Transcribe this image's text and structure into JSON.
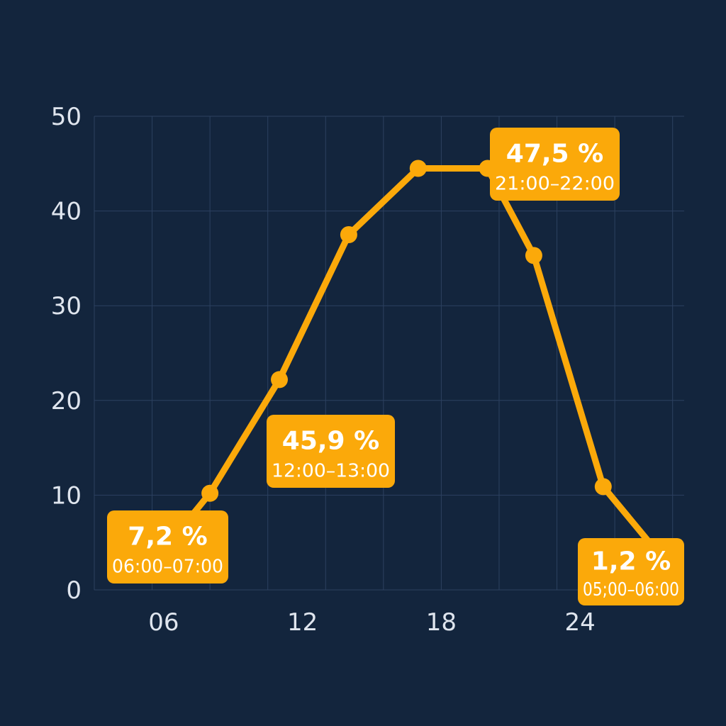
{
  "chart_data": {
    "type": "line",
    "x": [
      7,
      8,
      11,
      14,
      17,
      20,
      22,
      25,
      27
    ],
    "values": [
      7.2,
      10.2,
      22.2,
      37.5,
      44.5,
      44.5,
      35.3,
      10.9,
      5
    ],
    "xlim": [
      3,
      28.5
    ],
    "ylim": [
      0,
      50
    ],
    "xticks": [
      6,
      12,
      18,
      24
    ],
    "xtick_labels": [
      "06",
      "12",
      "18",
      "24"
    ],
    "yticks": [
      0,
      10,
      20,
      30,
      40,
      50
    ],
    "ytick_labels": [
      "0",
      "10",
      "20",
      "30",
      "40",
      "50"
    ],
    "grid": true,
    "callouts": [
      {
        "value": "7,2 %",
        "label": "06:00–07:00"
      },
      {
        "value": "45,9 %",
        "label": "12:00–13:00"
      },
      {
        "value": "47,5 %",
        "label": "21:00–22:00"
      },
      {
        "value": "1,2 %",
        "label": "05;00–06:00"
      }
    ],
    "colors": {
      "background": "#13253d",
      "grid": "#2c4160",
      "line": "#fba90a",
      "callout_bg": "#fba90a",
      "text": "#dfe5ee",
      "callout_text": "#ffffff"
    }
  }
}
